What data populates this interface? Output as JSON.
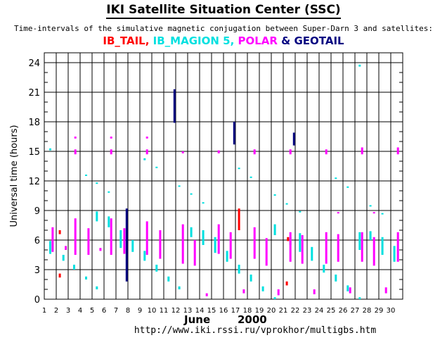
{
  "header": {
    "title": "IKI Satellite Situation Center (SSC)",
    "subtitle": "Time-intervals of the simulative magnetic conjugation between Super-Darn 3 and satellites:",
    "legend": [
      {
        "label": "IB_TAIL",
        "color": "#ff0000"
      },
      {
        "label": ", ",
        "color": "#ff0000"
      },
      {
        "label": "IB_MAGION 5",
        "color": "#00e0e0"
      },
      {
        "label": ", ",
        "color": "#00e0e0"
      },
      {
        "label": "POLAR",
        "color": "#ff00ff"
      },
      {
        "label": " & ",
        "color": "#000080"
      },
      {
        "label": "GEOTAIL",
        "color": "#000080"
      }
    ]
  },
  "footer": {
    "month": "June",
    "year": "2000",
    "url": "http://www.iki.rssi.ru/vprokhor/multigbs.htm"
  },
  "chart_data": {
    "type": "scatter",
    "xlabel": "",
    "ylabel": "Universal time (hours)",
    "xlim": [
      1,
      31
    ],
    "ylim": [
      0,
      25
    ],
    "x_ticks": [
      1,
      2,
      3,
      4,
      5,
      6,
      7,
      8,
      9,
      10,
      11,
      12,
      13,
      14,
      15,
      16,
      17,
      18,
      19,
      20,
      21,
      22,
      23,
      24,
      25,
      26,
      27,
      28,
      29,
      30
    ],
    "y_ticks": [
      0,
      3,
      6,
      9,
      12,
      15,
      18,
      21,
      24
    ],
    "grid": true,
    "colors": {
      "IB_TAIL": "#ff0000",
      "IB_MAGION 5": "#00e0e0",
      "POLAR": "#ff00ff",
      "GEOTAIL": "#000080"
    },
    "series": [
      {
        "name": "IB_TAIL",
        "intervals": [
          {
            "day": 2.3,
            "start": 2.2,
            "end": 2.6
          },
          {
            "day": 2.3,
            "start": 6.6,
            "end": 7.0
          },
          {
            "day": 17.3,
            "start": 7.0,
            "end": 9.2
          },
          {
            "day": 21.3,
            "start": 1.4,
            "end": 1.8
          },
          {
            "day": 21.4,
            "start": 5.9,
            "end": 6.3
          }
        ]
      },
      {
        "name": "IB_MAGION 5",
        "intervals": [
          {
            "day": 1.5,
            "start": 15.1,
            "end": 15.3
          },
          {
            "day": 1.5,
            "start": 4.6,
            "end": 5.9
          },
          {
            "day": 2.6,
            "start": 3.9,
            "end": 4.5
          },
          {
            "day": 3.5,
            "start": 3.0,
            "end": 3.5
          },
          {
            "day": 4.5,
            "start": 12.5,
            "end": 12.6
          },
          {
            "day": 4.5,
            "start": 2.0,
            "end": 2.3
          },
          {
            "day": 5.4,
            "start": 11.7,
            "end": 11.8
          },
          {
            "day": 5.4,
            "start": 7.9,
            "end": 8.9
          },
          {
            "day": 5.4,
            "start": 1.0,
            "end": 1.3
          },
          {
            "day": 6.4,
            "start": 10.8,
            "end": 10.9
          },
          {
            "day": 6.4,
            "start": 7.3,
            "end": 8.4
          },
          {
            "day": 7.4,
            "start": 5.2,
            "end": 7.0
          },
          {
            "day": 8.4,
            "start": 4.8,
            "end": 6.0
          },
          {
            "day": 9.4,
            "start": 14.1,
            "end": 14.3
          },
          {
            "day": 9.4,
            "start": 3.9,
            "end": 4.9
          },
          {
            "day": 10.4,
            "start": 13.3,
            "end": 13.4
          },
          {
            "day": 10.4,
            "start": 2.8,
            "end": 3.5
          },
          {
            "day": 11.4,
            "start": 1.8,
            "end": 2.3
          },
          {
            "day": 12.3,
            "start": 11.4,
            "end": 11.5
          },
          {
            "day": 12.3,
            "start": 1.0,
            "end": 1.3
          },
          {
            "day": 13.3,
            "start": 10.6,
            "end": 10.7
          },
          {
            "day": 13.3,
            "start": 6.3,
            "end": 7.3
          },
          {
            "day": 14.3,
            "start": 9.7,
            "end": 9.8
          },
          {
            "day": 14.3,
            "start": 5.5,
            "end": 7.0
          },
          {
            "day": 15.3,
            "start": 4.7,
            "end": 6.3
          },
          {
            "day": 16.3,
            "start": 3.8,
            "end": 4.9
          },
          {
            "day": 17.3,
            "start": 13.2,
            "end": 13.3
          },
          {
            "day": 17.3,
            "start": 2.6,
            "end": 3.5
          },
          {
            "day": 18.3,
            "start": 12.3,
            "end": 12.4
          },
          {
            "day": 18.3,
            "start": 1.8,
            "end": 2.5
          },
          {
            "day": 19.3,
            "start": 0.8,
            "end": 1.3
          },
          {
            "day": 20.3,
            "start": 10.5,
            "end": 10.6
          },
          {
            "day": 20.3,
            "start": 6.5,
            "end": 7.6
          },
          {
            "day": 20.3,
            "start": 0.0,
            "end": 0.2
          },
          {
            "day": 21.3,
            "start": 9.6,
            "end": 9.7
          },
          {
            "day": 21.6,
            "start": 5.5,
            "end": 6.3
          },
          {
            "day": 22.4,
            "start": 8.8,
            "end": 8.9
          },
          {
            "day": 22.4,
            "start": 4.8,
            "end": 6.7
          },
          {
            "day": 23.4,
            "start": 3.9,
            "end": 5.3
          },
          {
            "day": 24.4,
            "start": 2.7,
            "end": 3.5
          },
          {
            "day": 25.4,
            "start": 12.2,
            "end": 12.3
          },
          {
            "day": 25.4,
            "start": 1.8,
            "end": 2.5
          },
          {
            "day": 26.4,
            "start": 11.3,
            "end": 11.4
          },
          {
            "day": 26.4,
            "start": 0.8,
            "end": 1.4
          },
          {
            "day": 27.4,
            "start": 23.6,
            "end": 23.8
          },
          {
            "day": 27.4,
            "start": 5.0,
            "end": 6.8
          },
          {
            "day": 27.4,
            "start": 0.0,
            "end": 0.2
          },
          {
            "day": 28.3,
            "start": 9.4,
            "end": 9.5
          },
          {
            "day": 28.3,
            "start": 6.0,
            "end": 6.9
          },
          {
            "day": 29.3,
            "start": 8.6,
            "end": 8.7
          },
          {
            "day": 29.3,
            "start": 4.5,
            "end": 6.3
          },
          {
            "day": 30.3,
            "start": 3.8,
            "end": 5.4
          }
        ]
      },
      {
        "name": "POLAR",
        "intervals": [
          {
            "day": 1.7,
            "start": 4.8,
            "end": 7.3
          },
          {
            "day": 2.8,
            "start": 5.0,
            "end": 5.4
          },
          {
            "day": 3.6,
            "start": 16.3,
            "end": 16.5
          },
          {
            "day": 3.6,
            "start": 14.7,
            "end": 15.2
          },
          {
            "day": 3.6,
            "start": 4.5,
            "end": 8.2
          },
          {
            "day": 4.7,
            "start": 4.5,
            "end": 7.2
          },
          {
            "day": 5.7,
            "start": 4.9,
            "end": 5.2
          },
          {
            "day": 6.6,
            "start": 16.3,
            "end": 16.5
          },
          {
            "day": 6.6,
            "start": 14.7,
            "end": 15.2
          },
          {
            "day": 6.6,
            "start": 4.5,
            "end": 8.2
          },
          {
            "day": 7.7,
            "start": 4.6,
            "end": 7.2
          },
          {
            "day": 9.6,
            "start": 16.3,
            "end": 16.5
          },
          {
            "day": 9.6,
            "start": 14.7,
            "end": 15.2
          },
          {
            "day": 9.6,
            "start": 4.5,
            "end": 7.9
          },
          {
            "day": 10.7,
            "start": 4.1,
            "end": 7.0
          },
          {
            "day": 12.6,
            "start": 14.8,
            "end": 15.0
          },
          {
            "day": 12.6,
            "start": 3.6,
            "end": 7.6
          },
          {
            "day": 13.6,
            "start": 3.4,
            "end": 6.0
          },
          {
            "day": 14.6,
            "start": 0.3,
            "end": 0.6
          },
          {
            "day": 15.6,
            "start": 14.8,
            "end": 15.1
          },
          {
            "day": 15.6,
            "start": 4.6,
            "end": 7.6
          },
          {
            "day": 16.6,
            "start": 4.1,
            "end": 6.8
          },
          {
            "day": 17.7,
            "start": 0.6,
            "end": 1.0
          },
          {
            "day": 18.6,
            "start": 14.7,
            "end": 15.2
          },
          {
            "day": 18.6,
            "start": 4.1,
            "end": 7.3
          },
          {
            "day": 19.6,
            "start": 3.4,
            "end": 6.2
          },
          {
            "day": 20.6,
            "start": 0.4,
            "end": 1.0
          },
          {
            "day": 21.6,
            "start": 14.7,
            "end": 15.2
          },
          {
            "day": 21.6,
            "start": 3.8,
            "end": 6.8
          },
          {
            "day": 22.6,
            "start": 3.6,
            "end": 6.5
          },
          {
            "day": 24.6,
            "start": 14.7,
            "end": 15.2
          },
          {
            "day": 23.6,
            "start": 0.5,
            "end": 1.0
          },
          {
            "day": 24.6,
            "start": 3.6,
            "end": 6.8
          },
          {
            "day": 25.6,
            "start": 8.7,
            "end": 8.8
          },
          {
            "day": 25.6,
            "start": 3.8,
            "end": 6.6
          },
          {
            "day": 26.6,
            "start": 0.6,
            "end": 1.2
          },
          {
            "day": 27.6,
            "start": 14.7,
            "end": 15.4
          },
          {
            "day": 27.6,
            "start": 3.8,
            "end": 6.8
          },
          {
            "day": 28.6,
            "start": 8.7,
            "end": 8.8
          },
          {
            "day": 28.6,
            "start": 3.4,
            "end": 6.3
          },
          {
            "day": 29.6,
            "start": 0.6,
            "end": 1.2
          },
          {
            "day": 30.6,
            "start": 14.7,
            "end": 15.4
          },
          {
            "day": 30.6,
            "start": 3.8,
            "end": 6.8
          }
        ]
      },
      {
        "name": "GEOTAIL",
        "intervals": [
          {
            "day": 7.9,
            "start": 1.8,
            "end": 9.2
          },
          {
            "day": 11.9,
            "start": 17.9,
            "end": 21.3
          },
          {
            "day": 16.9,
            "start": 15.7,
            "end": 18.0
          },
          {
            "day": 21.9,
            "start": 15.6,
            "end": 16.9
          }
        ]
      }
    ]
  }
}
